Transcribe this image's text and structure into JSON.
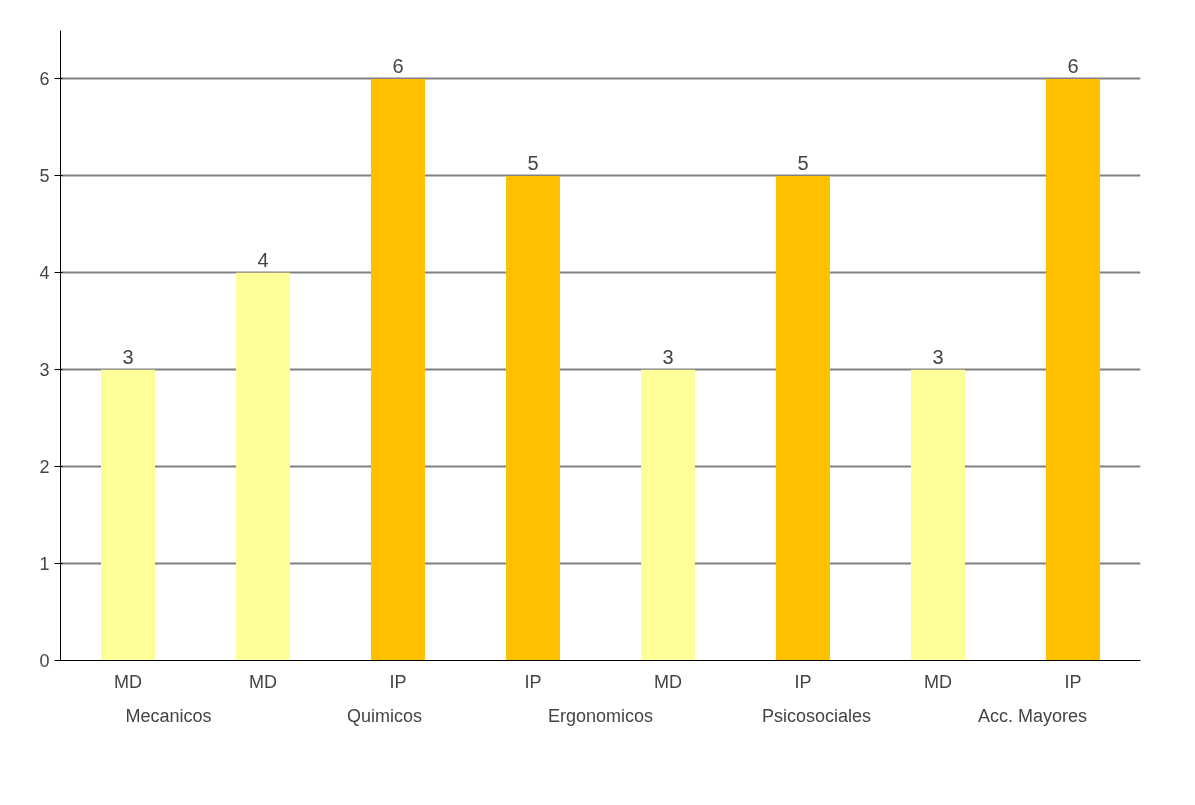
{
  "chart_data": {
    "type": "bar",
    "categories": [
      "MD",
      "MD",
      "IP",
      "IP",
      "MD",
      "IP",
      "MD",
      "IP"
    ],
    "values": [
      3,
      4,
      6,
      5,
      3,
      5,
      3,
      6
    ],
    "colors": [
      "#ffff99",
      "#ffff99",
      "#ffc000",
      "#ffc000",
      "#ffff99",
      "#ffc000",
      "#ffff99",
      "#ffc000"
    ],
    "ylim": [
      0,
      6.5
    ],
    "yticks": [
      0,
      1,
      2,
      3,
      4,
      5,
      6
    ],
    "grid": "y",
    "data_labels": true,
    "annotations": [
      "Mecanicos",
      "Quimicos",
      "Ergonomicos",
      "Psicosociales",
      "Acc. Mayores"
    ]
  }
}
